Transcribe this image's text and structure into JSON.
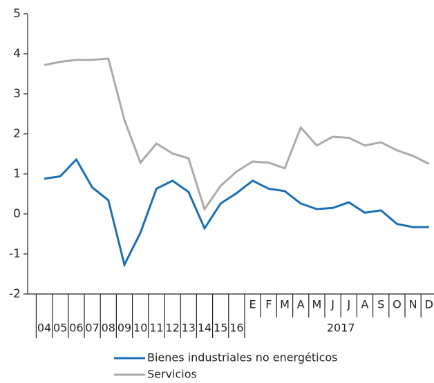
{
  "chart_data": {
    "type": "line",
    "categories": [
      "04",
      "05",
      "06",
      "07",
      "08",
      "09",
      "10",
      "11",
      "12",
      "13",
      "14",
      "15",
      "16",
      "E",
      "F",
      "M",
      "A",
      "M",
      "J",
      "J",
      "A",
      "S",
      "O",
      "N",
      "D"
    ],
    "month_group_label": "2017",
    "ylim": [
      -2,
      5
    ],
    "yticks": [
      -2,
      -1,
      0,
      1,
      2,
      3,
      4,
      5
    ],
    "series": [
      {
        "name": "Bienes industriales no energéticos",
        "color": "#1a6eb5",
        "values": [
          0.88,
          0.94,
          1.36,
          0.66,
          0.34,
          -1.27,
          -0.47,
          0.63,
          0.83,
          0.55,
          -0.36,
          0.26,
          0.52,
          0.83,
          0.63,
          0.57,
          0.26,
          0.12,
          0.15,
          0.29,
          0.03,
          0.09,
          -0.25,
          -0.33,
          -0.33
        ]
      },
      {
        "name": "Servicios",
        "color": "#aaaaaa",
        "values": [
          3.72,
          3.8,
          3.85,
          3.85,
          3.88,
          2.35,
          1.28,
          1.76,
          1.51,
          1.39,
          0.12,
          0.7,
          1.06,
          1.31,
          1.28,
          1.14,
          2.16,
          1.71,
          1.93,
          1.9,
          1.71,
          1.79,
          1.59,
          1.45,
          1.25
        ]
      }
    ]
  }
}
